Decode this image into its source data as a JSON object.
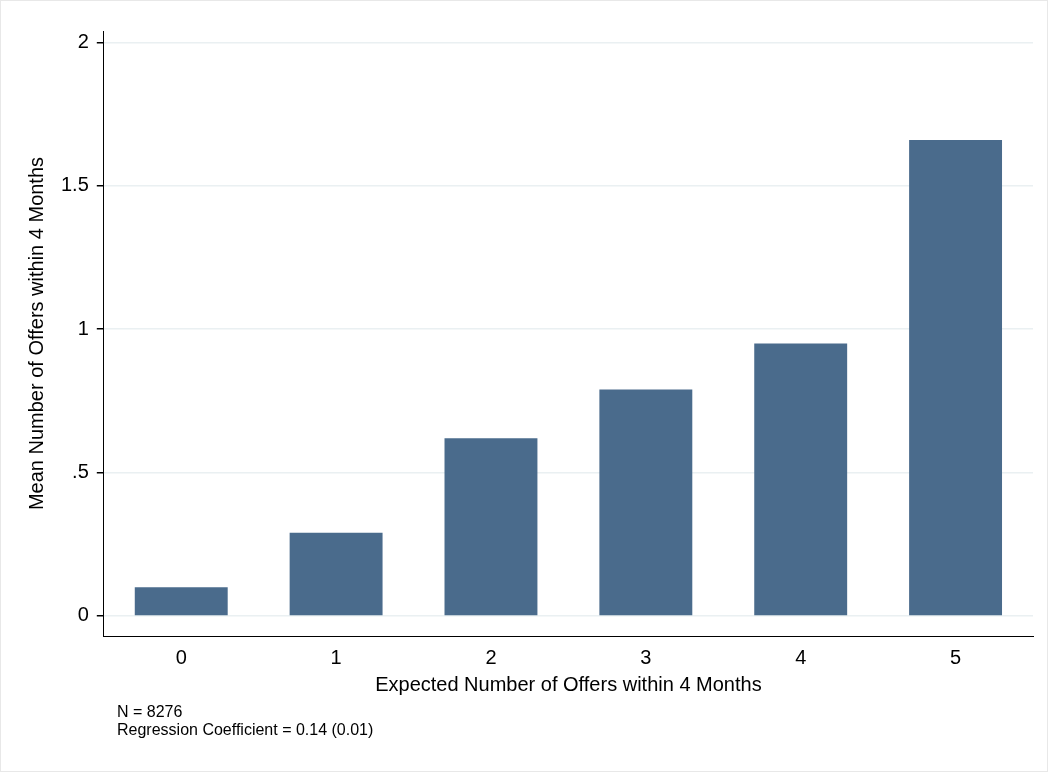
{
  "chart_data": {
    "type": "bar",
    "xlabel": "Expected Number of Offers within 4 Months",
    "ylabel": "Mean Number of Offers within 4 Months",
    "categories": [
      "0",
      "1",
      "2",
      "3",
      "4",
      "5"
    ],
    "values": [
      0.1,
      0.29,
      0.62,
      0.79,
      0.95,
      1.66
    ],
    "color": "#4a6b8c",
    "ylim": [
      -0.07,
      2.04
    ],
    "yticks": [
      0,
      {
        "value": 0.5,
        "label": ".5"
      },
      1,
      1.5,
      2
    ],
    "grid": "y",
    "legend": false,
    "annotations": [
      "N = 8276",
      "Regression Coefficient = 0.14 (0.01)"
    ]
  }
}
